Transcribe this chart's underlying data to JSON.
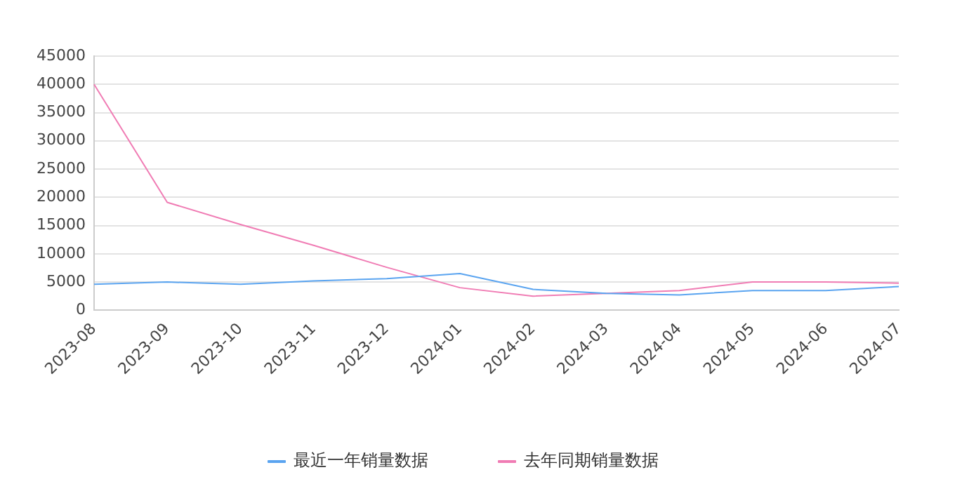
{
  "chart_data": {
    "type": "line",
    "categories": [
      "2023-08",
      "2023-09",
      "2023-10",
      "2023-11",
      "2023-12",
      "2024-01",
      "2024-02",
      "2024-03",
      "2024-04",
      "2024-05",
      "2024-06",
      "2024-07"
    ],
    "series": [
      {
        "name": "最近一年销量数据",
        "color": "#5aa4f0",
        "values": [
          4600,
          5000,
          4600,
          5200,
          5600,
          6500,
          3700,
          3000,
          2700,
          3500,
          3500,
          4200
        ]
      },
      {
        "name": "去年同期销量数据",
        "color": "#f07cb4",
        "values": [
          40000,
          19100,
          15200,
          11500,
          7600,
          4000,
          2500,
          3000,
          3500,
          5000,
          5000,
          4800
        ]
      }
    ],
    "ylim": [
      0,
      45000
    ],
    "yticks": [
      0,
      5000,
      10000,
      15000,
      20000,
      25000,
      30000,
      35000,
      40000,
      45000
    ],
    "grid": "y",
    "legend": "bottom",
    "marker": "none",
    "line_style": "solid"
  }
}
